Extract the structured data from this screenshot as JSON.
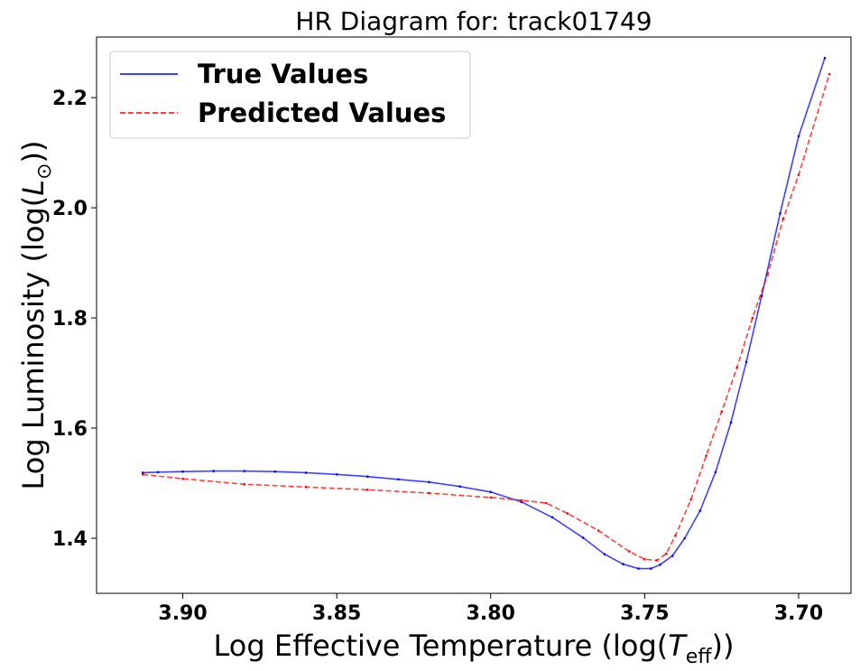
{
  "chart_data": {
    "type": "line",
    "title": "HR Diagram for: track01749",
    "xlabel": "Log Effective Temperature (log(T_eff))",
    "xlabel_parts": [
      "Log Effective Temperature (log(",
      "T",
      "eff",
      "))"
    ],
    "ylabel": "Log Luminosity (log(L_⊙))",
    "ylabel_parts": [
      "Log Luminosity (log(",
      "L",
      "⊙",
      "))"
    ],
    "xlim": [
      3.928,
      3.683
    ],
    "ylim": [
      1.3,
      2.31
    ],
    "x_inverted": true,
    "xticks": [
      3.9,
      3.85,
      3.8,
      3.75,
      3.7
    ],
    "xtick_labels": [
      "3.90",
      "3.85",
      "3.80",
      "3.75",
      "3.70"
    ],
    "yticks": [
      1.4,
      1.6,
      1.8,
      2.0,
      2.2
    ],
    "ytick_labels": [
      "1.4",
      "1.6",
      "1.8",
      "2.0",
      "2.2"
    ],
    "grid": false,
    "legend_position": "upper-left",
    "series": [
      {
        "name": "True Values",
        "color": "#0000ff",
        "style": "solid",
        "points": [
          [
            3.913,
            1.519
          ],
          [
            3.908,
            1.52
          ],
          [
            3.9,
            1.521
          ],
          [
            3.89,
            1.522
          ],
          [
            3.88,
            1.522
          ],
          [
            3.87,
            1.521
          ],
          [
            3.86,
            1.519
          ],
          [
            3.85,
            1.516
          ],
          [
            3.84,
            1.512
          ],
          [
            3.83,
            1.507
          ],
          [
            3.82,
            1.502
          ],
          [
            3.81,
            1.494
          ],
          [
            3.8,
            1.484
          ],
          [
            3.79,
            1.466
          ],
          [
            3.78,
            1.438
          ],
          [
            3.77,
            1.401
          ],
          [
            3.763,
            1.371
          ],
          [
            3.757,
            1.353
          ],
          [
            3.752,
            1.345
          ],
          [
            3.748,
            1.345
          ],
          [
            3.745,
            1.352
          ],
          [
            3.741,
            1.368
          ],
          [
            3.737,
            1.4
          ],
          [
            3.732,
            1.45
          ],
          [
            3.727,
            1.52
          ],
          [
            3.722,
            1.61
          ],
          [
            3.717,
            1.72
          ],
          [
            3.712,
            1.84
          ],
          [
            3.706,
            1.99
          ],
          [
            3.7,
            2.13
          ],
          [
            3.6915,
            2.272
          ]
        ]
      },
      {
        "name": "Predicted Values",
        "color": "#ff0000",
        "style": "dashed",
        "points": [
          [
            3.913,
            1.516
          ],
          [
            3.9,
            1.508
          ],
          [
            3.88,
            1.498
          ],
          [
            3.86,
            1.493
          ],
          [
            3.84,
            1.488
          ],
          [
            3.82,
            1.482
          ],
          [
            3.8,
            1.474
          ],
          [
            3.79,
            1.469
          ],
          [
            3.782,
            1.464
          ],
          [
            3.775,
            1.445
          ],
          [
            3.765,
            1.414
          ],
          [
            3.755,
            1.376
          ],
          [
            3.75,
            1.362
          ],
          [
            3.746,
            1.36
          ],
          [
            3.743,
            1.372
          ],
          [
            3.74,
            1.405
          ],
          [
            3.735,
            1.47
          ],
          [
            3.73,
            1.55
          ],
          [
            3.725,
            1.63
          ],
          [
            3.72,
            1.71
          ],
          [
            3.715,
            1.8
          ],
          [
            3.71,
            1.88
          ],
          [
            3.705,
            1.98
          ],
          [
            3.7,
            2.06
          ],
          [
            3.69,
            2.243
          ]
        ]
      }
    ]
  }
}
